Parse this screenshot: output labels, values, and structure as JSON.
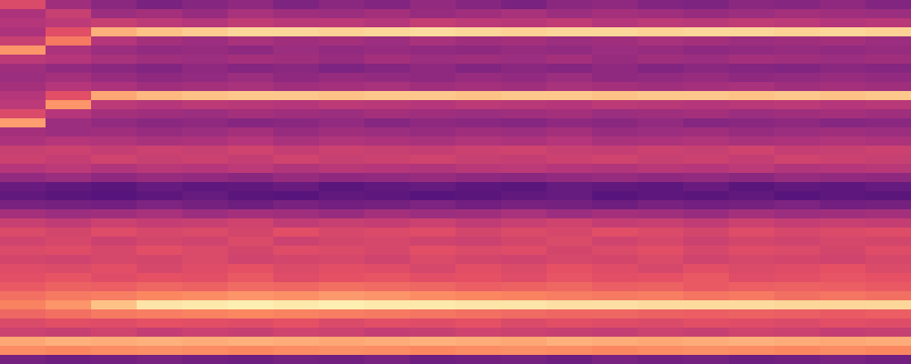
{
  "chart_data": {
    "type": "heatmap",
    "color": "magma",
    "tick_labels": false,
    "grid": false,
    "color_range": [
      0,
      100
    ],
    "cells": [
      [
        60,
        45,
        40,
        36,
        39,
        41,
        37,
        40,
        38,
        42,
        39,
        36,
        40,
        41,
        38,
        37,
        40,
        39,
        41,
        38
      ],
      [
        48,
        55,
        44,
        46,
        43,
        47,
        45,
        44,
        46,
        43,
        45,
        47,
        44,
        46,
        45,
        43,
        44,
        46,
        45,
        44
      ],
      [
        50,
        52,
        55,
        52,
        50,
        53,
        51,
        52,
        50,
        54,
        52,
        51,
        53,
        50,
        52,
        51,
        53,
        52,
        50,
        51
      ],
      [
        48,
        62,
        84,
        88,
        90,
        92,
        92,
        91,
        92,
        93,
        92,
        91,
        92,
        92,
        91,
        92,
        92,
        91,
        92,
        91
      ],
      [
        55,
        72,
        50,
        46,
        44,
        47,
        45,
        46,
        44,
        47,
        45,
        46,
        44,
        45,
        47,
        46,
        44,
        45,
        46,
        44
      ],
      [
        78,
        48,
        44,
        42,
        43,
        41,
        44,
        42,
        43,
        42,
        41,
        43,
        42,
        44,
        43,
        41,
        42,
        43,
        42,
        43
      ],
      [
        52,
        50,
        47,
        45,
        44,
        46,
        45,
        43,
        46,
        44,
        45,
        44,
        46,
        43,
        45,
        44,
        46,
        45,
        44,
        45
      ],
      [
        45,
        42,
        40,
        38,
        41,
        39,
        40,
        37,
        39,
        41,
        38,
        40,
        39,
        41,
        38,
        40,
        39,
        38,
        40,
        39
      ],
      [
        44,
        46,
        43,
        41,
        42,
        44,
        41,
        43,
        42,
        41,
        43,
        42,
        44,
        41,
        42,
        43,
        41,
        42,
        43,
        42
      ],
      [
        46,
        50,
        48,
        45,
        46,
        47,
        45,
        46,
        47,
        45,
        46,
        45,
        47,
        46,
        45,
        46,
        47,
        45,
        46,
        45
      ],
      [
        50,
        62,
        82,
        86,
        88,
        89,
        89,
        88,
        89,
        89,
        88,
        89,
        89,
        88,
        89,
        89,
        88,
        89,
        88,
        89
      ],
      [
        52,
        78,
        52,
        50,
        52,
        51,
        50,
        52,
        51,
        50,
        52,
        51,
        50,
        52,
        51,
        50,
        51,
        52,
        50,
        51
      ],
      [
        60,
        50,
        46,
        45,
        44,
        46,
        45,
        44,
        46,
        45,
        44,
        45,
        46,
        44,
        45,
        46,
        44,
        45,
        46,
        45
      ],
      [
        80,
        44,
        42,
        40,
        41,
        39,
        40,
        42,
        39,
        41,
        40,
        39,
        41,
        40,
        42,
        39,
        40,
        41,
        39,
        40
      ],
      [
        46,
        44,
        45,
        43,
        44,
        46,
        43,
        45,
        44,
        43,
        45,
        44,
        46,
        43,
        44,
        45,
        43,
        44,
        45,
        44
      ],
      [
        48,
        50,
        49,
        47,
        48,
        50,
        47,
        49,
        48,
        47,
        49,
        48,
        50,
        47,
        48,
        49,
        47,
        48,
        49,
        48
      ],
      [
        55,
        56,
        54,
        56,
        55,
        57,
        54,
        56,
        55,
        54,
        56,
        57,
        55,
        54,
        56,
        55,
        57,
        54,
        55,
        56
      ],
      [
        56,
        54,
        57,
        55,
        56,
        54,
        57,
        55,
        56,
        57,
        55,
        54,
        56,
        57,
        55,
        56,
        54,
        57,
        56,
        55
      ],
      [
        50,
        52,
        49,
        51,
        50,
        52,
        49,
        51,
        50,
        49,
        51,
        52,
        50,
        49,
        51,
        50,
        52,
        49,
        50,
        51
      ],
      [
        42,
        44,
        41,
        43,
        42,
        40,
        43,
        41,
        42,
        43,
        41,
        40,
        42,
        43,
        41,
        42,
        40,
        43,
        42,
        41
      ],
      [
        32,
        30,
        28,
        31,
        29,
        30,
        32,
        28,
        30,
        31,
        29,
        28,
        31,
        30,
        29,
        32,
        28,
        30,
        29,
        31
      ],
      [
        30,
        28,
        27,
        29,
        31,
        28,
        27,
        30,
        29,
        27,
        28,
        30,
        31,
        27,
        29,
        28,
        30,
        27,
        29,
        28
      ],
      [
        36,
        35,
        34,
        37,
        35,
        33,
        36,
        34,
        35,
        37,
        34,
        36,
        35,
        33,
        36,
        34,
        35,
        37,
        34,
        35
      ],
      [
        46,
        44,
        45,
        47,
        44,
        46,
        45,
        43,
        46,
        44,
        45,
        47,
        44,
        46,
        45,
        43,
        46,
        44,
        45,
        46
      ],
      [
        55,
        53,
        56,
        54,
        55,
        57,
        53,
        55,
        54,
        56,
        53,
        55,
        57,
        54,
        55,
        53,
        56,
        54,
        55,
        54
      ],
      [
        60,
        58,
        61,
        59,
        60,
        58,
        62,
        59,
        60,
        61,
        58,
        60,
        59,
        62,
        60,
        58,
        61,
        59,
        60,
        61
      ],
      [
        57,
        59,
        56,
        58,
        57,
        60,
        56,
        58,
        59,
        57,
        56,
        58,
        60,
        57,
        59,
        56,
        58,
        57,
        59,
        58
      ],
      [
        60,
        61,
        59,
        62,
        60,
        58,
        61,
        60,
        59,
        62,
        60,
        61,
        58,
        60,
        62,
        59,
        61,
        60,
        58,
        61
      ],
      [
        58,
        57,
        59,
        58,
        60,
        57,
        58,
        59,
        57,
        60,
        58,
        57,
        59,
        58,
        60,
        57,
        59,
        58,
        57,
        59
      ],
      [
        61,
        60,
        62,
        59,
        61,
        63,
        60,
        62,
        61,
        59,
        62,
        60,
        63,
        61,
        59,
        62,
        60,
        61,
        63,
        60
      ],
      [
        62,
        64,
        61,
        63,
        62,
        65,
        61,
        63,
        64,
        62,
        63,
        61,
        64,
        62,
        63,
        65,
        61,
        62,
        64,
        63
      ],
      [
        65,
        67,
        66,
        68,
        67,
        69,
        68,
        70,
        69,
        68,
        66,
        67,
        68,
        66,
        67,
        65,
        66,
        67,
        66,
        65
      ],
      [
        70,
        72,
        73,
        75,
        76,
        78,
        77,
        79,
        78,
        76,
        75,
        74,
        73,
        72,
        73,
        71,
        72,
        70,
        71,
        70
      ],
      [
        74,
        78,
        88,
        95,
        96,
        97,
        96,
        97,
        96,
        96,
        95,
        95,
        94,
        94,
        93,
        93,
        93,
        92,
        92,
        92
      ],
      [
        68,
        70,
        72,
        73,
        74,
        75,
        74,
        73,
        72,
        71,
        70,
        69,
        68,
        68,
        67,
        66,
        67,
        66,
        65,
        66
      ],
      [
        60,
        62,
        61,
        63,
        62,
        61,
        63,
        60,
        62,
        61,
        63,
        60,
        62,
        61,
        60,
        62,
        61,
        60,
        62,
        61
      ],
      [
        56,
        55,
        57,
        54,
        56,
        55,
        57,
        56,
        54,
        55,
        57,
        56,
        55,
        54,
        56,
        55,
        57,
        56,
        54,
        55
      ],
      [
        82,
        84,
        83,
        84,
        83,
        84,
        83,
        82,
        83,
        84,
        83,
        82,
        84,
        83,
        82,
        83,
        84,
        83,
        82,
        83
      ],
      [
        76,
        75,
        76,
        77,
        76,
        75,
        76,
        77,
        76,
        75,
        76,
        77,
        76,
        75,
        76,
        77,
        76,
        75,
        76,
        75
      ],
      [
        35,
        33,
        34,
        36,
        34,
        33,
        35,
        34,
        36,
        33,
        34,
        35,
        33,
        36,
        34,
        35,
        33,
        34,
        36,
        34
      ]
    ]
  }
}
